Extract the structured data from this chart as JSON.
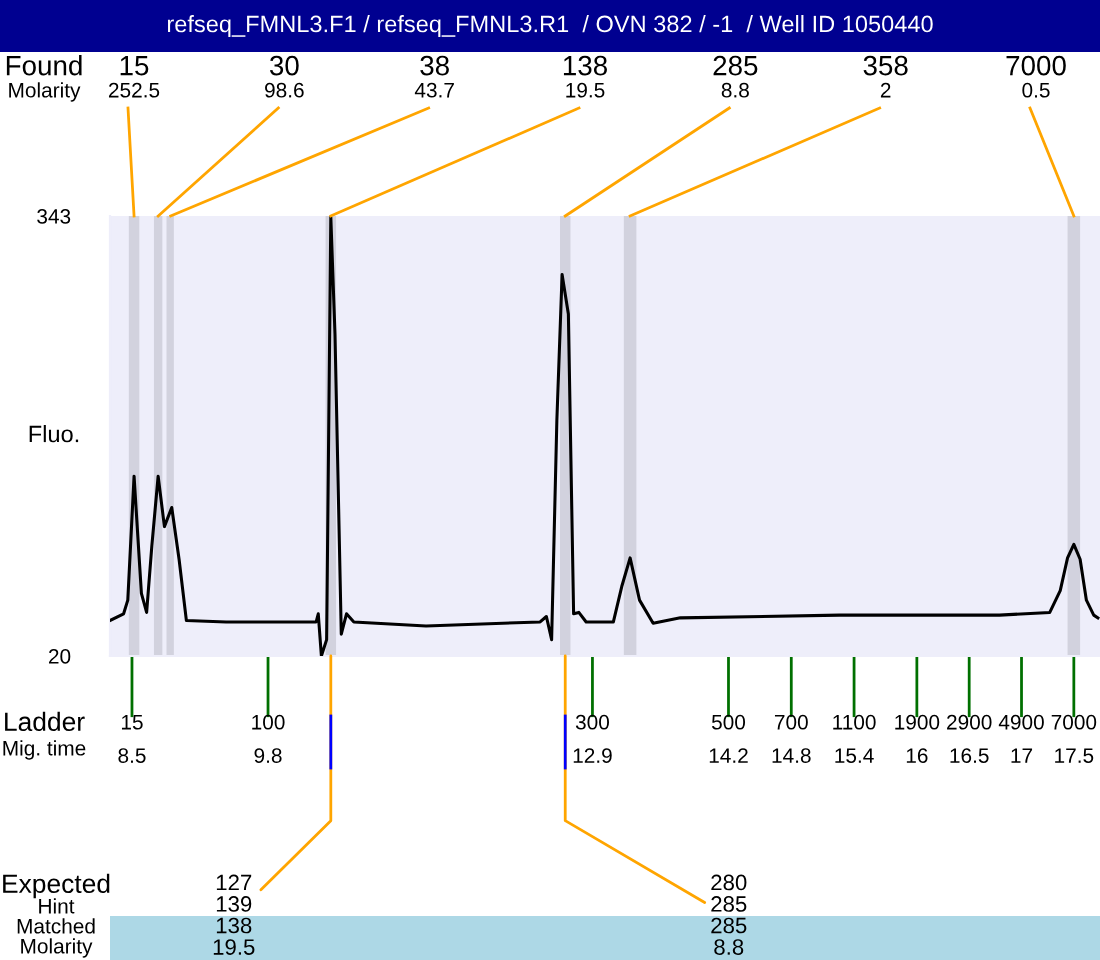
{
  "chart_data": {
    "type": "line",
    "title": "refseq_FMNL3.F1 / refseq_FMNL3.R1  / OVN 382 / -1  / Well ID 1050440",
    "ylabel": "Fluo.",
    "xlim": [
      8.29,
      17.75
    ],
    "ylim": [
      20,
      343
    ],
    "yticks": [
      20,
      343
    ],
    "xticks": [
      8.5,
      9.8,
      12.9,
      14.2,
      14.8,
      15.4,
      16,
      16.5,
      17,
      17.5
    ],
    "series": [
      {
        "color": "#000000",
        "x": [
          8.29,
          8.42,
          8.46,
          8.52,
          8.59,
          8.64,
          8.69,
          8.75,
          8.81,
          8.88,
          8.95,
          9.02,
          9.4,
          10.26,
          10.28,
          10.31,
          10.36,
          10.4,
          10.44,
          10.5,
          10.55,
          10.62,
          11.31,
          12.4,
          12.46,
          12.51,
          12.56,
          12.61,
          12.67,
          12.72,
          12.77,
          12.84,
          13.1,
          13.18,
          13.26,
          13.35,
          13.48,
          13.74,
          15.26,
          16.79,
          17.27,
          17.37,
          17.44,
          17.5,
          17.56,
          17.62,
          17.69,
          17.73
        ],
        "values": [
          46,
          51,
          61,
          152,
          66,
          52,
          101,
          152,
          115,
          129,
          91,
          46,
          45,
          45,
          51,
          20,
          32,
          342,
          256,
          36,
          51,
          45,
          42,
          45,
          49,
          32,
          193,
          300,
          271,
          51,
          52,
          45,
          45,
          71,
          92,
          61,
          44,
          48,
          50,
          50,
          52,
          68,
          92,
          102,
          91,
          61,
          50,
          48
        ]
      }
    ],
    "bands": [
      {
        "axis": "x",
        "from": 8.47,
        "to": 8.57,
        "color": "#d2d2de"
      },
      {
        "axis": "x",
        "from": 8.71,
        "to": 8.79,
        "color": "#d2d2de"
      },
      {
        "axis": "x",
        "from": 8.83,
        "to": 8.9,
        "color": "#d2d2de"
      },
      {
        "axis": "x",
        "from": 10.35,
        "to": 10.45,
        "color": "#d2d2de"
      },
      {
        "axis": "x",
        "from": 12.59,
        "to": 12.69,
        "color": "#d2d2de"
      },
      {
        "axis": "x",
        "from": 13.2,
        "to": 13.32,
        "color": "#d2d2de"
      },
      {
        "axis": "x",
        "from": 17.44,
        "to": 17.56,
        "color": "#d2d2de"
      }
    ],
    "annotations": [
      "Found",
      "Molarity",
      "Ladder",
      "Mig. time",
      "Expected",
      "Hint",
      "Matched",
      "Molarity",
      {
        "text": "15\n252.5",
        "x": 8.52,
        "y": 343
      },
      {
        "text": "30\n98.6",
        "x": 8.75,
        "y": 343
      },
      {
        "text": "38\n43.7",
        "x": 8.87,
        "y": 343
      },
      {
        "text": "138\n19.5",
        "x": 10.4,
        "y": 343
      },
      {
        "text": "285\n8.8",
        "x": 12.64,
        "y": 343
      },
      {
        "text": "358\n2",
        "x": 13.26,
        "y": 343
      },
      {
        "text": "7000\n0.5",
        "x": 17.5,
        "y": 343
      },
      "15",
      "100",
      "300",
      "500",
      "700",
      "1100",
      "1900",
      "2900",
      "4900",
      "7000",
      {
        "text": "127\n139\n138\n19.5",
        "x": 10.4,
        "y": 20
      },
      {
        "text": "280\n285\n285\n8.8",
        "x": 12.64,
        "y": 20
      }
    ],
    "grid": false,
    "legend": false
  }
}
